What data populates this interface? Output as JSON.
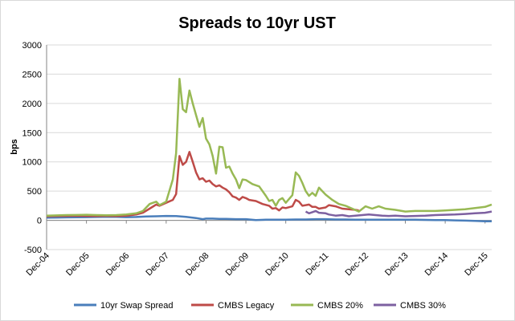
{
  "chart_data": {
    "type": "line",
    "title": "Spreads to 10yr UST",
    "xlabel": "",
    "ylabel": "bps",
    "ylim": [
      -500,
      3000
    ],
    "yticks": [
      -500,
      0,
      500,
      1000,
      1500,
      2000,
      2500,
      3000
    ],
    "xlim": [
      "2004-12",
      "2016-02"
    ],
    "xticks": [
      "Dec-04",
      "Dec-05",
      "Dec-06",
      "Dec-07",
      "Dec-08",
      "Dec-09",
      "Dec-10",
      "Dec-11",
      "Dec-12",
      "Dec-13",
      "Dec-14",
      "Dec-15"
    ],
    "grid": true,
    "legend_position": "bottom",
    "series": [
      {
        "name": "10yr Swap Spread",
        "color": "#4a7ebb",
        "points": [
          [
            "2004-12",
            45
          ],
          [
            "2005-03",
            48
          ],
          [
            "2005-06",
            50
          ],
          [
            "2005-09",
            52
          ],
          [
            "2005-12",
            55
          ],
          [
            "2006-03",
            57
          ],
          [
            "2006-06",
            60
          ],
          [
            "2006-09",
            58
          ],
          [
            "2006-12",
            55
          ],
          [
            "2007-03",
            57
          ],
          [
            "2007-06",
            65
          ],
          [
            "2007-09",
            70
          ],
          [
            "2007-12",
            75
          ],
          [
            "2008-03",
            72
          ],
          [
            "2008-06",
            60
          ],
          [
            "2008-09",
            40
          ],
          [
            "2008-11",
            20
          ],
          [
            "2008-12",
            30
          ],
          [
            "2009-02",
            30
          ],
          [
            "2009-04",
            25
          ],
          [
            "2009-06",
            25
          ],
          [
            "2009-09",
            20
          ],
          [
            "2009-12",
            20
          ],
          [
            "2010-03",
            5
          ],
          [
            "2010-06",
            10
          ],
          [
            "2010-09",
            10
          ],
          [
            "2010-12",
            10
          ],
          [
            "2011-03",
            15
          ],
          [
            "2011-06",
            15
          ],
          [
            "2011-09",
            20
          ],
          [
            "2011-12",
            20
          ],
          [
            "2012-03",
            15
          ],
          [
            "2012-06",
            15
          ],
          [
            "2012-09",
            10
          ],
          [
            "2012-12",
            10
          ],
          [
            "2013-03",
            10
          ],
          [
            "2013-06",
            12
          ],
          [
            "2013-09",
            10
          ],
          [
            "2013-12",
            12
          ],
          [
            "2014-03",
            10
          ],
          [
            "2014-06",
            8
          ],
          [
            "2014-09",
            5
          ],
          [
            "2014-12",
            5
          ],
          [
            "2015-03",
            0
          ],
          [
            "2015-06",
            -5
          ],
          [
            "2015-09",
            -10
          ],
          [
            "2015-12",
            -15
          ],
          [
            "2016-02",
            -15
          ]
        ]
      },
      {
        "name": "CMBS Legacy",
        "color": "#be4b48",
        "points": [
          [
            "2004-12",
            70
          ],
          [
            "2005-03",
            72
          ],
          [
            "2005-06",
            75
          ],
          [
            "2005-09",
            78
          ],
          [
            "2005-12",
            75
          ],
          [
            "2006-03",
            72
          ],
          [
            "2006-06",
            75
          ],
          [
            "2006-09",
            72
          ],
          [
            "2006-12",
            80
          ],
          [
            "2007-03",
            100
          ],
          [
            "2007-05",
            130
          ],
          [
            "2007-07",
            200
          ],
          [
            "2007-09",
            270
          ],
          [
            "2007-10",
            250
          ],
          [
            "2007-12",
            300
          ],
          [
            "2008-02",
            350
          ],
          [
            "2008-03",
            450
          ],
          [
            "2008-04",
            1100
          ],
          [
            "2008-05",
            950
          ],
          [
            "2008-06",
            1000
          ],
          [
            "2008-07",
            1170
          ],
          [
            "2008-08",
            1000
          ],
          [
            "2008-09",
            820
          ],
          [
            "2008-10",
            700
          ],
          [
            "2008-11",
            720
          ],
          [
            "2008-12",
            660
          ],
          [
            "2009-01",
            680
          ],
          [
            "2009-02",
            620
          ],
          [
            "2009-03",
            580
          ],
          [
            "2009-04",
            600
          ],
          [
            "2009-05",
            560
          ],
          [
            "2009-06",
            530
          ],
          [
            "2009-07",
            480
          ],
          [
            "2009-08",
            410
          ],
          [
            "2009-09",
            390
          ],
          [
            "2009-10",
            350
          ],
          [
            "2009-11",
            400
          ],
          [
            "2009-12",
            380
          ],
          [
            "2010-01",
            350
          ],
          [
            "2010-03",
            330
          ],
          [
            "2010-05",
            280
          ],
          [
            "2010-07",
            250
          ],
          [
            "2010-08",
            200
          ],
          [
            "2010-09",
            210
          ],
          [
            "2010-10",
            170
          ],
          [
            "2010-11",
            220
          ],
          [
            "2010-12",
            210
          ],
          [
            "2011-02",
            240
          ],
          [
            "2011-03",
            350
          ],
          [
            "2011-04",
            320
          ],
          [
            "2011-05",
            250
          ],
          [
            "2011-07",
            270
          ],
          [
            "2011-08",
            230
          ],
          [
            "2011-09",
            230
          ],
          [
            "2011-10",
            200
          ],
          [
            "2011-12",
            220
          ],
          [
            "2012-01",
            260
          ],
          [
            "2012-03",
            240
          ],
          [
            "2012-05",
            200
          ],
          [
            "2012-07",
            190
          ],
          [
            "2012-09",
            180
          ],
          [
            "2012-10",
            170
          ]
        ]
      },
      {
        "name": "CMBS 20%",
        "color": "#98b954",
        "points": [
          [
            "2004-12",
            80
          ],
          [
            "2005-03",
            85
          ],
          [
            "2005-06",
            90
          ],
          [
            "2005-09",
            92
          ],
          [
            "2005-12",
            95
          ],
          [
            "2006-03",
            90
          ],
          [
            "2006-06",
            88
          ],
          [
            "2006-09",
            90
          ],
          [
            "2006-12",
            100
          ],
          [
            "2007-03",
            120
          ],
          [
            "2007-05",
            160
          ],
          [
            "2007-07",
            280
          ],
          [
            "2007-09",
            320
          ],
          [
            "2007-10",
            260
          ],
          [
            "2007-12",
            320
          ],
          [
            "2008-02",
            700
          ],
          [
            "2008-03",
            1150
          ],
          [
            "2008-04",
            2420
          ],
          [
            "2008-05",
            1900
          ],
          [
            "2008-06",
            1850
          ],
          [
            "2008-07",
            2220
          ],
          [
            "2008-08",
            2000
          ],
          [
            "2008-09",
            1800
          ],
          [
            "2008-10",
            1600
          ],
          [
            "2008-11",
            1750
          ],
          [
            "2008-12",
            1400
          ],
          [
            "2009-01",
            1300
          ],
          [
            "2009-02",
            1100
          ],
          [
            "2009-03",
            800
          ],
          [
            "2009-04",
            1260
          ],
          [
            "2009-05",
            1250
          ],
          [
            "2009-06",
            900
          ],
          [
            "2009-07",
            920
          ],
          [
            "2009-08",
            800
          ],
          [
            "2009-09",
            700
          ],
          [
            "2009-10",
            550
          ],
          [
            "2009-11",
            700
          ],
          [
            "2009-12",
            690
          ],
          [
            "2010-02",
            620
          ],
          [
            "2010-04",
            580
          ],
          [
            "2010-06",
            420
          ],
          [
            "2010-07",
            330
          ],
          [
            "2010-08",
            350
          ],
          [
            "2010-09",
            250
          ],
          [
            "2010-10",
            350
          ],
          [
            "2010-11",
            380
          ],
          [
            "2010-12",
            300
          ],
          [
            "2011-02",
            430
          ],
          [
            "2011-03",
            820
          ],
          [
            "2011-04",
            760
          ],
          [
            "2011-05",
            640
          ],
          [
            "2011-06",
            500
          ],
          [
            "2011-07",
            420
          ],
          [
            "2011-08",
            470
          ],
          [
            "2011-09",
            420
          ],
          [
            "2011-10",
            560
          ],
          [
            "2011-11",
            500
          ],
          [
            "2011-12",
            440
          ],
          [
            "2012-02",
            350
          ],
          [
            "2012-04",
            280
          ],
          [
            "2012-06",
            250
          ],
          [
            "2012-08",
            200
          ],
          [
            "2012-10",
            150
          ],
          [
            "2012-12",
            240
          ],
          [
            "2013-02",
            200
          ],
          [
            "2013-04",
            240
          ],
          [
            "2013-06",
            200
          ],
          [
            "2013-09",
            180
          ],
          [
            "2013-12",
            150
          ],
          [
            "2014-03",
            160
          ],
          [
            "2014-06",
            160
          ],
          [
            "2014-09",
            160
          ],
          [
            "2014-12",
            170
          ],
          [
            "2015-03",
            180
          ],
          [
            "2015-06",
            190
          ],
          [
            "2015-09",
            210
          ],
          [
            "2015-12",
            230
          ],
          [
            "2016-02",
            270
          ]
        ]
      },
      {
        "name": "CMBS 30%",
        "color": "#7d60a0",
        "points": [
          [
            "2011-06",
            150
          ],
          [
            "2011-07",
            120
          ],
          [
            "2011-08",
            140
          ],
          [
            "2011-09",
            160
          ],
          [
            "2011-10",
            130
          ],
          [
            "2011-12",
            120
          ],
          [
            "2012-01",
            100
          ],
          [
            "2012-03",
            80
          ],
          [
            "2012-05",
            90
          ],
          [
            "2012-07",
            70
          ],
          [
            "2012-09",
            80
          ],
          [
            "2012-11",
            90
          ],
          [
            "2013-01",
            100
          ],
          [
            "2013-03",
            90
          ],
          [
            "2013-05",
            80
          ],
          [
            "2013-07",
            75
          ],
          [
            "2013-09",
            80
          ],
          [
            "2013-12",
            70
          ],
          [
            "2014-03",
            75
          ],
          [
            "2014-06",
            80
          ],
          [
            "2014-09",
            90
          ],
          [
            "2014-12",
            95
          ],
          [
            "2015-03",
            100
          ],
          [
            "2015-06",
            110
          ],
          [
            "2015-09",
            120
          ],
          [
            "2015-12",
            130
          ],
          [
            "2016-02",
            150
          ]
        ]
      }
    ]
  }
}
